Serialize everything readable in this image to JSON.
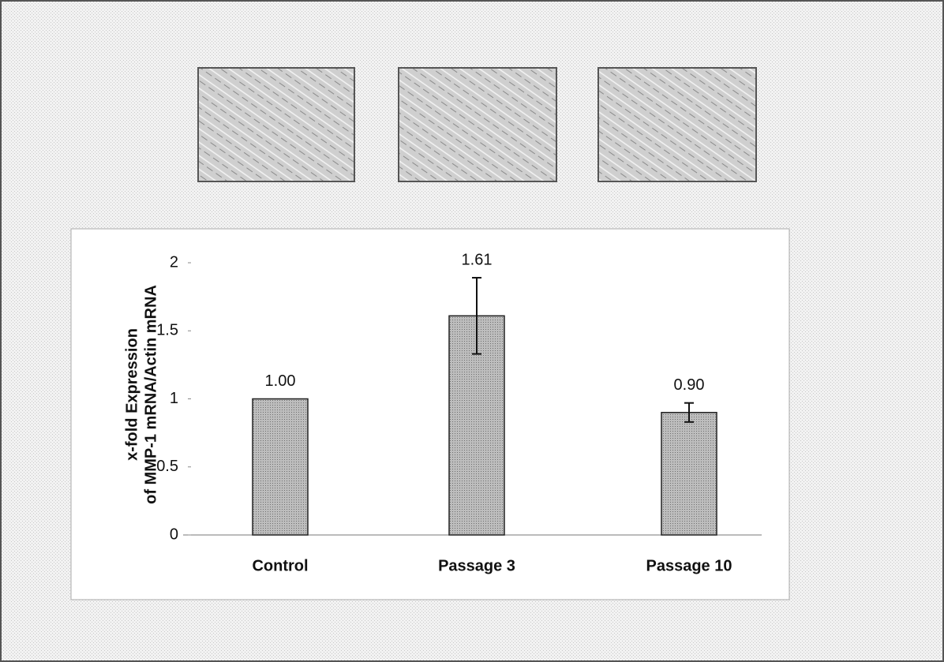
{
  "chart_data": {
    "type": "bar",
    "ylabel": [
      "x-fold Expression",
      "of MMP-1 mRNA/Actin mRNA"
    ],
    "categories": [
      "Control",
      "Passage 3",
      "Passage 10"
    ],
    "values": [
      1.0,
      1.61,
      0.9
    ],
    "value_labels": [
      "1.00",
      "1.61",
      "0.90"
    ],
    "errors": [
      null,
      0.28,
      0.07
    ],
    "color": "#a9a9a9",
    "ylim": [
      0,
      2
    ],
    "yticks": [
      0,
      0.5,
      1,
      1.5,
      2
    ],
    "grid": false
  }
}
